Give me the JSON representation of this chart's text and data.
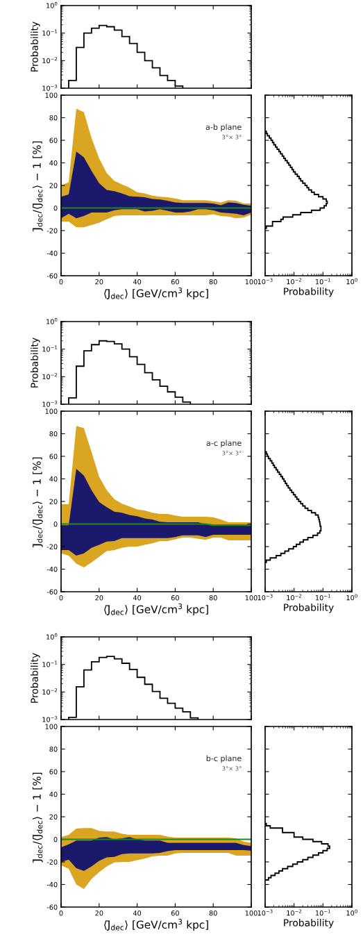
{
  "chart_data": [
    {
      "type": "histogram",
      "ylabel": "Probability",
      "log": "y",
      "color": "#000000",
      "tick_labels": "y",
      "bins": [
        4,
        8,
        12,
        16,
        20,
        24,
        28,
        32,
        36,
        40,
        44,
        48,
        52,
        56,
        60,
        64
      ],
      "values": [
        0.0019,
        0.03,
        0.1,
        0.15,
        0.19,
        0.17,
        0.128,
        0.075,
        0.042,
        0.02,
        0.01,
        0.0055,
        0.0029,
        0.0019,
        0.0012
      ],
      "xlim": [
        0,
        100
      ],
      "xticks": [
        0,
        20,
        40,
        60,
        80,
        100
      ],
      "ylim": [
        0.001,
        1
      ],
      "yticks": [
        {
          "value": 0.001,
          "label": "10$^{−3}$"
        },
        {
          "value": 0.01,
          "label": "10$^{−2}$"
        },
        {
          "value": 0.1,
          "label": "10$^{−1}$"
        },
        {
          "value": 1,
          "label": "10$^{0}$"
        }
      ]
    },
    {
      "type": "area",
      "xlabel": "⟨J̄$_{dec}$⟩ [GeV/cm$^{3}$ kpc]",
      "ylabel": "J̄$_{dec}$/⟨J̄$_{dec}$⟩ − 1 [%]",
      "annotations": [
        "a-b plane",
        "3°× 3°"
      ],
      "xlim": [
        0,
        100
      ],
      "xticks": [
        0,
        20,
        40,
        60,
        80,
        100
      ],
      "ylim": [
        -60,
        100
      ],
      "yticks": [
        -60,
        -40,
        -20,
        0,
        20,
        40,
        60,
        80,
        100
      ],
      "series": [
        {
          "color": "#daa520",
          "x": [
            0,
            4,
            8,
            12,
            16,
            20,
            24,
            28,
            32,
            36,
            40,
            44,
            48,
            52,
            56,
            60,
            64,
            68,
            72,
            76,
            80,
            84,
            88,
            92,
            96,
            100
          ],
          "values": [
            null,
            null,
            null,
            null,
            null,
            null,
            null,
            null,
            null,
            null,
            null,
            null,
            null,
            null,
            null,
            null,
            null,
            null,
            null,
            null,
            null,
            null,
            null,
            null,
            null,
            null
          ],
          "lower": [
            -12,
            -12,
            -17,
            -17,
            -15,
            -13,
            -10,
            -7,
            -6.5,
            -6.5,
            -6.5,
            -6.5,
            -6.5,
            -6.5,
            -6.5,
            -6.5,
            -6.5,
            -6.5,
            -6.5,
            -6.5,
            -5.5,
            -7,
            -7.5,
            -9,
            -8.5,
            -6
          ],
          "upper": [
            20,
            23,
            88,
            85,
            62,
            44,
            31,
            24,
            21,
            18,
            14,
            13,
            11,
            10,
            9.5,
            8.5,
            7,
            7,
            7,
            7,
            6,
            5,
            7,
            6.5,
            4,
            4
          ]
        },
        {
          "color": "#1a196b",
          "x": [
            0,
            4,
            8,
            12,
            16,
            20,
            24,
            28,
            32,
            36,
            40,
            44,
            48,
            52,
            56,
            60,
            64,
            68,
            72,
            76,
            80,
            84,
            88,
            92,
            96,
            100
          ],
          "values": [
            null,
            null,
            null,
            null,
            null,
            null,
            null,
            null,
            null,
            null,
            null,
            null,
            null,
            null,
            null,
            null,
            null,
            null,
            null,
            null,
            null,
            null,
            null,
            null,
            null,
            null
          ],
          "lower": [
            -9,
            -5,
            -9,
            -7,
            -4,
            -4,
            -4,
            -2,
            -1,
            -1,
            -1,
            -3,
            -2.5,
            -1,
            -2.5,
            -4,
            -4,
            -3,
            -1,
            -1,
            -2,
            -4,
            -4.5,
            -5,
            -6.5,
            -4
          ],
          "upper": [
            10,
            12,
            50,
            45,
            33,
            22,
            16,
            15,
            13,
            10.5,
            10,
            9.5,
            8,
            7.5,
            6.5,
            5,
            4.5,
            4.5,
            4.5,
            4.5,
            4,
            2.5,
            5,
            4.5,
            3,
            2
          ]
        },
        {
          "type": "line",
          "color": "#1e8a1e",
          "x": [
            0,
            100
          ],
          "values": [
            0,
            0
          ]
        }
      ]
    },
    {
      "type": "histogram",
      "orientation": "horizontal",
      "xlabel": "Probability",
      "log": "x",
      "color": "#000000",
      "tick_labels": "x",
      "bins": [
        -18,
        -16,
        -14,
        -12,
        -10,
        -8,
        -6,
        -4,
        -2,
        0,
        2,
        4,
        6,
        8,
        10,
        12,
        14,
        16,
        18,
        20,
        22,
        24,
        26,
        28,
        30,
        32,
        34,
        36,
        38,
        40,
        42,
        44,
        46,
        48,
        50,
        52,
        54,
        56,
        58,
        60,
        62,
        64,
        66,
        68
      ],
      "values": [
        0.0011,
        0.0018,
        0.0018,
        0.0035,
        0.0042,
        0.009,
        0.017,
        0.04,
        0.08,
        0.11,
        0.13,
        0.14,
        0.13,
        0.1,
        0.07,
        0.05,
        0.04,
        0.032,
        0.028,
        0.024,
        0.02,
        0.017,
        0.015,
        0.013,
        0.011,
        0.0095,
        0.0085,
        0.0075,
        0.0066,
        0.0058,
        0.005,
        0.0044,
        0.0039,
        0.0034,
        0.003,
        0.0026,
        0.0023,
        0.002,
        0.0018,
        0.0016,
        0.0014,
        0.0012,
        0.0011
      ],
      "xlim": [
        0.001,
        1
      ],
      "xticks": [
        {
          "value": 0.001,
          "label": "10$^{−3}$"
        },
        {
          "value": 0.01,
          "label": "10$^{−2}$"
        },
        {
          "value": 0.1,
          "label": "10$^{−1}$"
        },
        {
          "value": 1,
          "label": "10$^{0}$"
        }
      ],
      "ylim": [
        -60,
        100
      ],
      "yticks": [
        -60,
        -40,
        -20,
        0,
        20,
        40,
        60,
        80,
        100
      ]
    },
    {
      "type": "histogram",
      "ylabel": "Probability",
      "log": "y",
      "color": "#000000",
      "tick_labels": "y",
      "bins": [
        4,
        8,
        12,
        16,
        20,
        24,
        28,
        32,
        36,
        40,
        44,
        48,
        52,
        56,
        60,
        64,
        68
      ],
      "values": [
        0.0017,
        0.024,
        0.087,
        0.145,
        0.2,
        0.19,
        0.155,
        0.1,
        0.053,
        0.028,
        0.014,
        0.0077,
        0.0045,
        0.0028,
        0.0018,
        0.0012
      ],
      "xlim": [
        0,
        100
      ],
      "xticks": [
        0,
        20,
        40,
        60,
        80,
        100
      ],
      "ylim": [
        0.001,
        1
      ],
      "yticks": [
        {
          "value": 0.001,
          "label": "10$^{−3}$"
        },
        {
          "value": 0.01,
          "label": "10$^{−2}$"
        },
        {
          "value": 0.1,
          "label": "10$^{−1}$"
        },
        {
          "value": 1,
          "label": "10$^{0}$"
        }
      ]
    },
    {
      "type": "area",
      "xlabel": "⟨J̄$_{dec}$⟩ [GeV/cm$^{3}$ kpc]",
      "ylabel": "J̄$_{dec}$/⟨J̄$_{dec}$⟩ − 1 [%]",
      "annotations": [
        "a-c plane",
        "3°× 3°"
      ],
      "xlim": [
        0,
        100
      ],
      "xticks": [
        0,
        20,
        40,
        60,
        80,
        100
      ],
      "ylim": [
        -60,
        100
      ],
      "yticks": [
        -60,
        -40,
        -20,
        0,
        20,
        40,
        60,
        80,
        100
      ],
      "series": [
        {
          "color": "#daa520",
          "x": [
            0,
            4,
            8,
            12,
            16,
            20,
            24,
            28,
            32,
            36,
            40,
            44,
            48,
            52,
            56,
            60,
            64,
            68,
            72,
            76,
            80,
            84,
            88,
            92,
            96,
            100
          ],
          "values": [
            null,
            null,
            null,
            null,
            null,
            null,
            null,
            null,
            null,
            null,
            null,
            null,
            null,
            null,
            null,
            null,
            null,
            null,
            null,
            null,
            null,
            null,
            null,
            null,
            null,
            null
          ],
          "lower": [
            -26,
            -28,
            -35,
            -38.5,
            -34,
            -29,
            -24,
            -23,
            -21,
            -20,
            -20,
            -18.5,
            -17,
            -15,
            -15,
            -13.5,
            -12,
            -12,
            -13,
            -14,
            -12,
            -12,
            -14.5,
            -14.5,
            -14.5,
            -14.5
          ],
          "upper": [
            17.5,
            17.5,
            87,
            85,
            64,
            42,
            30,
            22,
            18,
            15.5,
            13,
            12,
            10,
            9,
            9,
            7.5,
            6.5,
            6.5,
            6.5,
            6.5,
            6,
            4,
            1.5,
            1.5,
            1.5,
            1.5
          ]
        },
        {
          "color": "#1a196b",
          "x": [
            0,
            4,
            8,
            12,
            16,
            20,
            24,
            28,
            32,
            36,
            40,
            44,
            48,
            52,
            56,
            60,
            64,
            68,
            72,
            76,
            80,
            84,
            88,
            92,
            96,
            100
          ],
          "values": [
            null,
            null,
            null,
            null,
            null,
            null,
            null,
            null,
            null,
            null,
            null,
            null,
            null,
            null,
            null,
            null,
            null,
            null,
            null,
            null,
            null,
            null,
            null,
            null,
            null,
            null
          ],
          "lower": [
            -23,
            -23,
            -28,
            -26,
            -21,
            -18.5,
            -15.5,
            -15,
            -12.5,
            -12.5,
            -12.5,
            -12.5,
            -12.5,
            -12.5,
            -12.5,
            -11.5,
            -10,
            -10,
            -10,
            -11.5,
            -9.5,
            -9.5,
            -9.5,
            -9.5,
            -9.5,
            -9.5
          ],
          "upper": [
            -1,
            -1,
            49,
            43,
            30,
            19.5,
            15,
            11,
            10,
            8,
            7,
            5,
            4,
            2,
            1.5,
            1.5,
            1.5,
            1.5,
            1.5,
            0,
            -1.5,
            -1.5,
            -1.5,
            -1.5,
            -1.5,
            -1.5
          ]
        },
        {
          "type": "line",
          "color": "#1e8a1e",
          "x": [
            0,
            76,
            80,
            100
          ],
          "values": [
            0,
            0,
            -1,
            -1
          ]
        }
      ]
    },
    {
      "type": "histogram",
      "orientation": "horizontal",
      "xlabel": "Probability",
      "log": "x",
      "color": "#000000",
      "tick_labels": "x",
      "bins": [
        -34,
        -32,
        -30,
        -28,
        -26,
        -24,
        -22,
        -20,
        -18,
        -16,
        -14,
        -12,
        -10,
        -8,
        -6,
        -4,
        -2,
        0,
        2,
        4,
        6,
        8,
        10,
        12,
        14,
        16,
        18,
        20,
        22,
        24,
        26,
        28,
        30,
        32,
        34,
        36,
        38,
        40,
        42,
        44,
        46,
        48,
        50,
        52,
        54,
        56,
        58,
        60,
        62,
        64
      ],
      "values": [
        0.0011,
        0.0015,
        0.0024,
        0.0035,
        0.0048,
        0.0065,
        0.0095,
        0.012,
        0.016,
        0.021,
        0.03,
        0.045,
        0.065,
        0.078,
        0.085,
        0.085,
        0.08,
        0.078,
        0.075,
        0.072,
        0.068,
        0.055,
        0.04,
        0.03,
        0.024,
        0.02,
        0.017,
        0.0145,
        0.0125,
        0.011,
        0.0095,
        0.0083,
        0.0072,
        0.0063,
        0.0056,
        0.005,
        0.0045,
        0.004,
        0.0035,
        0.0031,
        0.0027,
        0.0024,
        0.0021,
        0.0019,
        0.0017,
        0.0015,
        0.0013,
        0.0012,
        0.0011
      ],
      "xlim": [
        0.001,
        1
      ],
      "xticks": [
        {
          "value": 0.001,
          "label": "10$^{−3}$"
        },
        {
          "value": 0.01,
          "label": "10$^{−2}$"
        },
        {
          "value": 0.1,
          "label": "10$^{−1}$"
        },
        {
          "value": 1,
          "label": "10$^{0}$"
        }
      ],
      "ylim": [
        -60,
        100
      ],
      "yticks": [
        -60,
        -40,
        -20,
        0,
        20,
        40,
        60,
        80,
        100
      ]
    },
    {
      "type": "histogram",
      "ylabel": "Probability",
      "log": "y",
      "color": "#000000",
      "tick_labels": "y",
      "bins": [
        4,
        8,
        12,
        16,
        20,
        24,
        28,
        32,
        36,
        40,
        44,
        48,
        52,
        56,
        60,
        64,
        68,
        72
      ],
      "values": [
        0.0012,
        0.0155,
        0.063,
        0.125,
        0.18,
        0.195,
        0.16,
        0.11,
        0.066,
        0.034,
        0.019,
        0.0104,
        0.0059,
        0.0039,
        0.0026,
        0.0019,
        0.00115
      ],
      "xlim": [
        0,
        100
      ],
      "xticks": [
        0,
        20,
        40,
        60,
        80,
        100
      ],
      "ylim": [
        0.001,
        1
      ],
      "yticks": [
        {
          "value": 0.001,
          "label": "10$^{−3}$"
        },
        {
          "value": 0.01,
          "label": "10$^{−2}$"
        },
        {
          "value": 0.1,
          "label": "10$^{−1}$"
        },
        {
          "value": 1,
          "label": "10$^{0}$"
        }
      ]
    },
    {
      "type": "area",
      "xlabel": "⟨J̄$_{dec}$⟩ [GeV/cm$^{3}$ kpc]",
      "ylabel": "J̄$_{dec}$/⟨J̄$_{dec}$⟩ − 1 [%]",
      "annotations": [
        "b-c plane",
        "3°× 3°"
      ],
      "xlim": [
        0,
        100
      ],
      "xticks": [
        0,
        20,
        40,
        60,
        80,
        100
      ],
      "ylim": [
        -60,
        100
      ],
      "yticks": [
        -60,
        -40,
        -20,
        0,
        20,
        40,
        60,
        80,
        100
      ],
      "series": [
        {
          "color": "#daa520",
          "x": [
            0,
            4,
            8,
            12,
            16,
            20,
            24,
            28,
            32,
            36,
            40,
            44,
            48,
            52,
            56,
            60,
            64,
            68,
            72,
            76,
            80,
            84,
            88,
            92,
            96,
            100
          ],
          "values": [
            null,
            null,
            null,
            null,
            null,
            null,
            null,
            null,
            null,
            null,
            null,
            null,
            null,
            null,
            null,
            null,
            null,
            null,
            null,
            null,
            null,
            null,
            null,
            null,
            null,
            null
          ],
          "lower": [
            -23,
            -26,
            -40,
            -44,
            -35,
            -29,
            -24,
            -20.5,
            -20,
            -20,
            -18.5,
            -17,
            -15,
            -14.5,
            -14.5,
            -12.5,
            -12,
            -12,
            -12,
            -12,
            -12,
            -12,
            -12,
            -14.5,
            -14.5,
            -14.5
          ],
          "upper": [
            2,
            4,
            9.5,
            10,
            10,
            7.5,
            7,
            7,
            5,
            4,
            4,
            4,
            4,
            4,
            2.5,
            1.5,
            1.5,
            1.5,
            1.5,
            1.5,
            1.5,
            1.5,
            1.5,
            1,
            -2,
            -3
          ]
        },
        {
          "color": "#1a196b",
          "x": [
            0,
            4,
            8,
            12,
            16,
            20,
            24,
            28,
            32,
            36,
            40,
            44,
            48,
            52,
            56,
            60,
            64,
            68,
            72,
            76,
            80,
            84,
            88,
            92,
            96,
            100
          ],
          "values": [
            null,
            null,
            null,
            null,
            null,
            null,
            null,
            null,
            null,
            null,
            null,
            null,
            null,
            null,
            null,
            null,
            null,
            null,
            null,
            null,
            null,
            null,
            null,
            null,
            null,
            null
          ],
          "lower": [
            -20,
            -18,
            -25.5,
            -28,
            -24,
            -19,
            -16,
            -15.5,
            -13,
            -12.5,
            -12.5,
            -12.5,
            -12.5,
            -12,
            -10.5,
            -9.5,
            -9.5,
            -9.5,
            -9.5,
            -9.5,
            -9.5,
            -9.5,
            -9.5,
            -9.5,
            -9.5,
            -10
          ],
          "upper": [
            -7,
            -4.5,
            -1,
            -1,
            -1,
            1.5,
            2,
            0,
            1,
            2,
            0,
            -1,
            -1,
            -1,
            -3,
            -3,
            -3,
            -3,
            -3,
            -3,
            -3,
            -3,
            -3,
            -3,
            -5,
            -6
          ]
        },
        {
          "type": "line",
          "color": "#1e8a1e",
          "x": [
            0,
            100
          ],
          "values": [
            0,
            0
          ]
        }
      ]
    },
    {
      "type": "histogram",
      "orientation": "horizontal",
      "xlabel": "Probability",
      "log": "x",
      "color": "#000000",
      "tick_labels": "x",
      "bins": [
        -36,
        -34,
        -32,
        -30,
        -28,
        -26,
        -24,
        -22,
        -20,
        -18,
        -16,
        -14,
        -12,
        -10,
        -8,
        -6,
        -4,
        -2,
        0,
        2,
        4,
        6,
        8,
        10,
        12,
        14
      ],
      "values": [
        0.0013,
        0.0016,
        0.0022,
        0.003,
        0.004,
        0.006,
        0.009,
        0.013,
        0.02,
        0.03,
        0.045,
        0.07,
        0.1,
        0.14,
        0.17,
        0.15,
        0.09,
        0.045,
        0.02,
        0.01,
        0.01,
        0.004,
        0.004,
        0.0015,
        0.0011
      ],
      "xlim": [
        0.001,
        1
      ],
      "xticks": [
        {
          "value": 0.001,
          "label": "10$^{−3}$"
        },
        {
          "value": 0.01,
          "label": "10$^{−2}$"
        },
        {
          "value": 0.1,
          "label": "10$^{−1}$"
        },
        {
          "value": 1,
          "label": "10$^{0}$"
        }
      ],
      "ylim": [
        -60,
        100
      ],
      "yticks": [
        -60,
        -40,
        -20,
        0,
        20,
        40,
        60,
        80,
        100
      ]
    }
  ]
}
